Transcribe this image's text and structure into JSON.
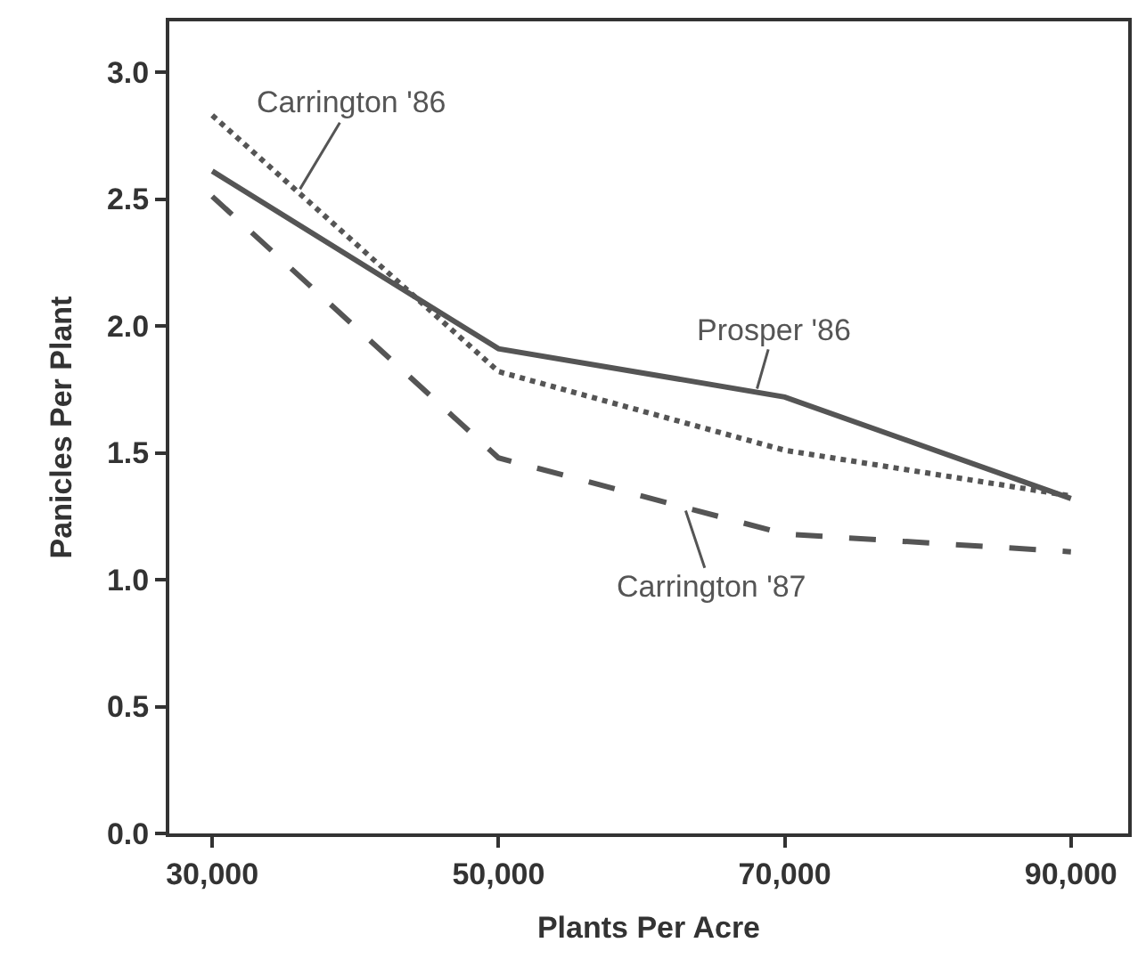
{
  "chart_data": {
    "type": "line",
    "xlabel": "Plants Per Acre",
    "ylabel": "Panicles Per Plant",
    "x": [
      30000,
      50000,
      70000,
      90000
    ],
    "xlim": [
      27000,
      94000
    ],
    "xticks": [
      {
        "value": 30000,
        "label": "30,000"
      },
      {
        "value": 50000,
        "label": "50,000"
      },
      {
        "value": 70000,
        "label": "70,000"
      },
      {
        "value": 90000,
        "label": "90,000"
      }
    ],
    "ylim": [
      0,
      3.2
    ],
    "yticks": [
      {
        "value": 0,
        "label": "0.0"
      },
      {
        "value": 0.5,
        "label": "0.5"
      },
      {
        "value": 1,
        "label": "1.0"
      },
      {
        "value": 1.5,
        "label": "1.5"
      },
      {
        "value": 2,
        "label": "2.0"
      },
      {
        "value": 2.5,
        "label": "2.5"
      },
      {
        "value": 3,
        "label": "3.0"
      }
    ],
    "marker": "none",
    "series": [
      {
        "name": "Carrington '86",
        "color": "#555555",
        "line_style": "dotted",
        "values": [
          2.83,
          1.82,
          1.51,
          1.33
        ]
      },
      {
        "name": "Prosper '86",
        "color": "#555555",
        "line_style": "solid",
        "values": [
          2.61,
          1.91,
          1.72,
          1.32
        ]
      },
      {
        "name": "Carrington '87",
        "color": "#555555",
        "line_style": "dashed",
        "values": [
          2.51,
          1.48,
          1.18,
          1.11
        ]
      }
    ]
  }
}
